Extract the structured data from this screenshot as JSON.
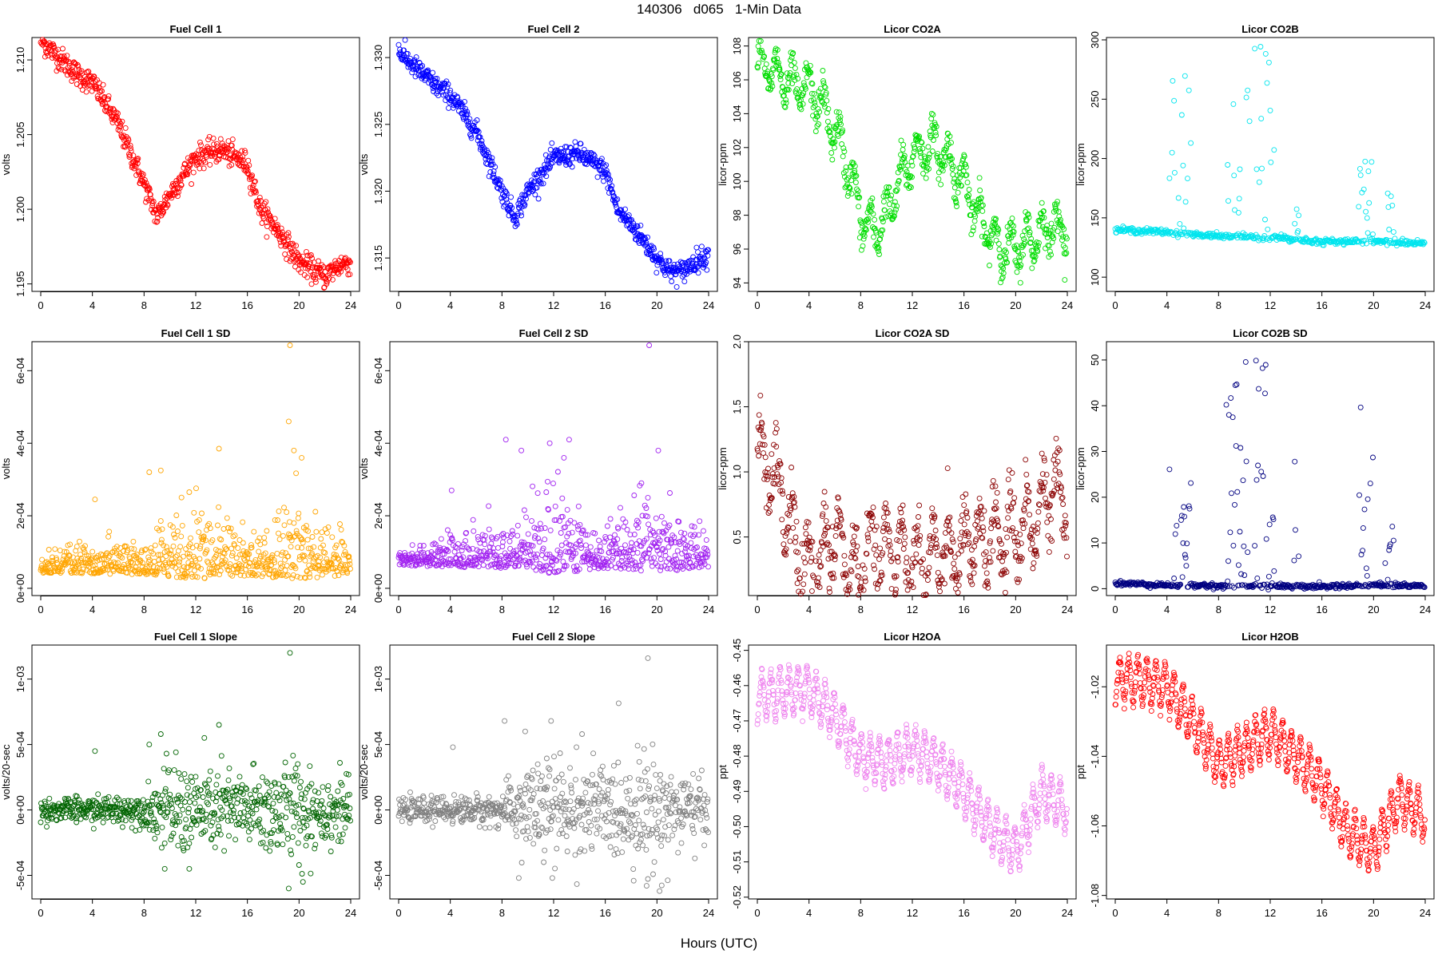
{
  "figure": {
    "title": "140306   d065   1-Min Data",
    "xlabel": "Hours (UTC)"
  },
  "chart_data": [
    {
      "type": "scatter",
      "title": "Fuel Cell 1",
      "xlabel": "",
      "ylabel": "volts",
      "color": "#ff0000",
      "xlim": [
        0,
        24
      ],
      "ylim": [
        1.1945,
        1.2115
      ],
      "xticks": [
        0,
        4,
        8,
        12,
        16,
        20,
        24
      ],
      "yticks": [
        1.195,
        1.2,
        1.205,
        1.21
      ],
      "yticklabels": [
        "1.195",
        "1.200",
        "1.205",
        "1.210"
      ],
      "series": [
        {
          "pattern": "trend",
          "noise": 0.0004,
          "x": [
            0,
            1,
            3,
            4,
            6,
            8,
            9,
            10,
            12,
            14,
            16,
            17,
            18,
            20,
            21,
            22,
            23,
            24
          ],
          "y": [
            1.2113,
            1.2105,
            1.2089,
            1.2085,
            1.2057,
            1.2017,
            1.1995,
            1.201,
            1.2035,
            1.204,
            1.203,
            1.2,
            1.199,
            1.1965,
            1.196,
            1.1955,
            1.1962,
            1.1965
          ]
        }
      ]
    },
    {
      "type": "scatter",
      "title": "Fuel Cell 2",
      "xlabel": "",
      "ylabel": "volts",
      "color": "#0000ff",
      "xlim": [
        0,
        24
      ],
      "ylim": [
        1.3125,
        1.3315
      ],
      "xticks": [
        0,
        4,
        8,
        12,
        16,
        20,
        24
      ],
      "yticks": [
        1.315,
        1.32,
        1.325,
        1.33
      ],
      "yticklabels": [
        "1.315",
        "1.320",
        "1.325",
        "1.330"
      ],
      "series": [
        {
          "pattern": "trend",
          "noise": 0.0004,
          "x": [
            0,
            1,
            3,
            4,
            6,
            8,
            9,
            10,
            12,
            14,
            16,
            17,
            18,
            20,
            21,
            22,
            23,
            24
          ],
          "y": [
            1.3305,
            1.3295,
            1.3278,
            1.3272,
            1.3245,
            1.32,
            1.318,
            1.32,
            1.3225,
            1.3228,
            1.3215,
            1.3185,
            1.3175,
            1.315,
            1.314,
            1.314,
            1.3148,
            1.3152
          ]
        }
      ]
    },
    {
      "type": "scatter",
      "title": "Licor CO2A",
      "xlabel": "",
      "ylabel": "licor-ppm",
      "color": "#00dd00",
      "xlim": [
        0,
        24
      ],
      "ylim": [
        93.5,
        108.5
      ],
      "xticks": [
        0,
        4,
        8,
        12,
        16,
        20,
        24
      ],
      "yticks": [
        94,
        96,
        98,
        100,
        102,
        104,
        106,
        108
      ],
      "yticklabels": [
        "94",
        "96",
        "98",
        "100",
        "102",
        "104",
        "106",
        "108"
      ],
      "series": [
        {
          "pattern": "oscillating",
          "noise": 0.5,
          "x": [
            0,
            1,
            2,
            3,
            4,
            5,
            6,
            7,
            8,
            9,
            10,
            11,
            12,
            13,
            14,
            15,
            16,
            17,
            18,
            19,
            20,
            21,
            22,
            23,
            24
          ],
          "y": [
            107.5,
            106.5,
            106,
            105.5,
            105.5,
            104.5,
            103,
            101,
            98,
            97,
            98,
            100,
            101.5,
            102,
            102,
            101,
            100,
            98,
            97,
            96,
            96,
            96.5,
            97,
            97.5,
            97
          ]
        }
      ]
    },
    {
      "type": "scatter",
      "title": "Licor CO2B",
      "xlabel": "",
      "ylabel": "licor-ppm",
      "color": "#00e5ee",
      "xlim": [
        0,
        24
      ],
      "ylim": [
        88,
        302
      ],
      "xticks": [
        0,
        4,
        8,
        12,
        16,
        20,
        24
      ],
      "yticks": [
        100,
        150,
        200,
        250,
        300
      ],
      "yticklabels": [
        "100",
        "150",
        "200",
        "250",
        "300"
      ],
      "series": [
        {
          "pattern": "baseline-bursts",
          "base": [
            [
              0,
              140
            ],
            [
              4,
              138
            ],
            [
              5,
              137
            ],
            [
              8,
              134
            ],
            [
              12,
              134
            ],
            [
              16,
              130
            ],
            [
              20,
              130
            ],
            [
              24,
              128
            ]
          ],
          "noise": 1.2,
          "bursts": [
            [
              4.2,
              5.9,
              130,
              270
            ],
            [
              8.6,
              10.4,
              130,
              260
            ],
            [
              10.8,
              12.3,
              130,
              300
            ],
            [
              13.8,
              14.2,
              130,
              165
            ],
            [
              18.8,
              20,
              130,
              220
            ],
            [
              20.9,
              21.7,
              130,
              175
            ]
          ]
        }
      ]
    },
    {
      "type": "scatter",
      "title": "Fuel Cell 1 SD",
      "xlabel": "",
      "ylabel": "volts",
      "color": "#ffa500",
      "xlim": [
        0,
        24
      ],
      "ylim": [
        -2e-05,
        0.00068
      ],
      "xticks": [
        0,
        4,
        8,
        12,
        16,
        20,
        24
      ],
      "yticks": [
        0,
        0.0002,
        0.0004,
        0.0006
      ],
      "yticklabels": [
        "0e+00",
        "2e-04",
        "4e-04",
        "6e-04"
      ],
      "series": [
        {
          "pattern": "noise-band",
          "base": 5e-05,
          "spread": [
            [
              0,
              3e-05
            ],
            [
              8,
              5e-05
            ],
            [
              12,
              0.0001
            ],
            [
              16,
              6e-05
            ],
            [
              20,
              0.0001
            ],
            [
              24,
              5e-05
            ]
          ],
          "outliers": [
            [
              4.2,
              0.000245
            ],
            [
              8.4,
              0.00032
            ],
            [
              9.3,
              0.000325
            ],
            [
              11.5,
              0.000265
            ],
            [
              13.8,
              0.000385
            ],
            [
              19.2,
              0.00046
            ],
            [
              19.3,
              0.00067
            ],
            [
              19.6,
              0.00038
            ],
            [
              20.2,
              0.00036
            ]
          ]
        }
      ]
    },
    {
      "type": "scatter",
      "title": "Fuel Cell 2 SD",
      "xlabel": "",
      "ylabel": "volts",
      "color": "#a020f0",
      "xlim": [
        0,
        24
      ],
      "ylim": [
        -2e-05,
        0.00068
      ],
      "xticks": [
        0,
        4,
        8,
        12,
        16,
        20,
        24
      ],
      "yticks": [
        0,
        0.0002,
        0.0004,
        0.0006
      ],
      "yticklabels": [
        "0e+00",
        "2e-04",
        "4e-04",
        "6e-04"
      ],
      "series": [
        {
          "pattern": "noise-band",
          "base": 7e-05,
          "spread": [
            [
              0,
              3e-05
            ],
            [
              8,
              6e-05
            ],
            [
              12,
              0.00012
            ],
            [
              16,
              6e-05
            ],
            [
              20,
              0.0001
            ],
            [
              24,
              5e-05
            ]
          ],
          "outliers": [
            [
              4.1,
              0.00027
            ],
            [
              8.3,
              0.00041
            ],
            [
              9.5,
              0.00038
            ],
            [
              11.7,
              0.0004
            ],
            [
              13.2,
              0.00041
            ],
            [
              12.8,
              0.00036
            ],
            [
              19.4,
              0.00067
            ],
            [
              20.1,
              0.00038
            ],
            [
              18.8,
              0.00029
            ]
          ]
        }
      ]
    },
    {
      "type": "scatter",
      "title": "Licor CO2A SD",
      "xlabel": "",
      "ylabel": "licor-ppm",
      "color": "#8b0000",
      "xlim": [
        0,
        24
      ],
      "ylim": [
        0.05,
        2.0
      ],
      "xticks": [
        0,
        4,
        8,
        12,
        16,
        20,
        24
      ],
      "yticks": [
        0.5,
        1.0,
        1.5,
        2.0
      ],
      "yticklabels": [
        "0.5",
        "1.0",
        "1.5",
        "2.0"
      ],
      "series": [
        {
          "pattern": "oscillating",
          "noise": 0.12,
          "x": [
            0,
            1,
            2,
            3,
            3.5,
            4,
            5,
            6,
            7,
            7.5,
            8,
            9,
            10,
            11,
            12,
            13,
            14,
            15,
            16,
            17,
            18,
            19,
            20,
            21,
            22,
            23,
            24
          ],
          "y": [
            1.15,
            1.0,
            0.8,
            0.4,
            0.2,
            0.25,
            0.35,
            0.5,
            0.3,
            0.2,
            0.25,
            0.4,
            0.35,
            0.4,
            0.3,
            0.3,
            0.35,
            0.35,
            0.4,
            0.45,
            0.5,
            0.5,
            0.55,
            0.6,
            0.7,
            0.9,
            0.8
          ]
        }
      ]
    },
    {
      "type": "scatter",
      "title": "Licor CO2B SD",
      "xlabel": "",
      "ylabel": "licor-ppm",
      "color": "#000080",
      "xlim": [
        0,
        24
      ],
      "ylim": [
        -1.5,
        54
      ],
      "xticks": [
        0,
        4,
        8,
        12,
        16,
        20,
        24
      ],
      "yticks": [
        0,
        10,
        20,
        30,
        40,
        50
      ],
      "yticklabels": [
        "0",
        "10",
        "20",
        "30",
        "40",
        "50"
      ],
      "series": [
        {
          "pattern": "baseline-bursts",
          "base": [
            [
              0,
              1.2
            ],
            [
              4,
              0.8
            ],
            [
              8,
              0.6
            ],
            [
              16,
              0.5
            ],
            [
              20,
              0.8
            ],
            [
              24,
              0.6
            ]
          ],
          "noise": 0.25,
          "bursts": [
            [
              4.2,
              5.9,
              0.5,
              29
            ],
            [
              8.6,
              10.4,
              0.5,
              53
            ],
            [
              10.8,
              12.3,
              0.5,
              52
            ],
            [
              13.8,
              14.2,
              0.5,
              29
            ],
            [
              18.8,
              20,
              0.5,
              48
            ],
            [
              20.9,
              21.7,
              0.5,
              15
            ]
          ]
        }
      ]
    },
    {
      "type": "scatter",
      "title": "Fuel Cell 1 Slope",
      "xlabel": "",
      "ylabel": "volts/20-sec",
      "color": "#006400",
      "xlim": [
        0,
        24
      ],
      "ylim": [
        -0.00068,
        0.00126
      ],
      "xticks": [
        0,
        4,
        8,
        12,
        16,
        20,
        24
      ],
      "yticks": [
        -0.0005,
        0,
        0.0005,
        0.001
      ],
      "yticklabels": [
        "-5e-04",
        "0e+00",
        "5e-04",
        "1e-03"
      ],
      "series": [
        {
          "pattern": "noise-band",
          "base": 0,
          "spread": [
            [
              0,
              4e-05
            ],
            [
              8,
              6e-05
            ],
            [
              10,
              0.00018
            ],
            [
              16,
              0.00015
            ],
            [
              20,
              0.0002
            ],
            [
              24,
              0.0001
            ]
          ],
          "outliers": [
            [
              4.2,
              0.00045
            ],
            [
              8.4,
              0.0005
            ],
            [
              9.3,
              0.00058
            ],
            [
              13.8,
              0.00065
            ],
            [
              19.3,
              0.0012
            ],
            [
              9.6,
              -0.00045
            ],
            [
              11.5,
              -0.00045
            ],
            [
              19.2,
              -0.0006
            ],
            [
              20.3,
              -0.00055
            ]
          ]
        }
      ]
    },
    {
      "type": "scatter",
      "title": "Fuel Cell 2 Slope",
      "xlabel": "",
      "ylabel": "volts/20-sec",
      "color": "#808080",
      "xlim": [
        0,
        24
      ],
      "ylim": [
        -0.00068,
        0.00126
      ],
      "xticks": [
        0,
        4,
        8,
        12,
        16,
        20,
        24
      ],
      "yticks": [
        -0.0005,
        0,
        0.0005,
        0.001
      ],
      "yticklabels": [
        "-5e-04",
        "0e+00",
        "5e-04",
        "1e-03"
      ],
      "series": [
        {
          "pattern": "noise-band",
          "base": 0,
          "spread": [
            [
              0,
              4e-05
            ],
            [
              8,
              6e-05
            ],
            [
              10,
              0.0002
            ],
            [
              16,
              0.00018
            ],
            [
              20,
              0.00022
            ],
            [
              24,
              0.0001
            ]
          ],
          "outliers": [
            [
              4.2,
              0.00048
            ],
            [
              8.2,
              0.00068
            ],
            [
              9.8,
              0.0006
            ],
            [
              11.8,
              0.00068
            ],
            [
              14.2,
              0.00058
            ],
            [
              19.3,
              0.00116
            ],
            [
              9.3,
              -0.00052
            ],
            [
              11.9,
              -0.00052
            ],
            [
              19.2,
              -0.00058
            ],
            [
              20.2,
              -0.00062
            ]
          ]
        }
      ]
    },
    {
      "type": "scatter",
      "title": "Licor H2OA",
      "xlabel": "",
      "ylabel": "ppt",
      "color": "#ee82ee",
      "xlim": [
        0,
        24
      ],
      "ylim": [
        -0.5205,
        -0.4485
      ],
      "xticks": [
        0,
        4,
        8,
        12,
        16,
        20,
        24
      ],
      "yticks": [
        -0.52,
        -0.51,
        -0.5,
        -0.49,
        -0.48,
        -0.47,
        -0.46,
        -0.45
      ],
      "yticklabels": [
        "-0.52",
        "-0.51",
        "-0.50",
        "-0.49",
        "-0.48",
        "-0.47",
        "-0.46",
        "-0.45"
      ],
      "series": [
        {
          "pattern": "sawtooth",
          "amp": 0.0075,
          "period": 0.7,
          "x": [
            0,
            2,
            4,
            6,
            8,
            10,
            12,
            14,
            16,
            18,
            20,
            22,
            24
          ],
          "y": [
            -0.463,
            -0.462,
            -0.461,
            -0.469,
            -0.48,
            -0.482,
            -0.478,
            -0.482,
            -0.49,
            -0.5,
            -0.507,
            -0.49,
            -0.495
          ]
        }
      ]
    },
    {
      "type": "scatter",
      "title": "Licor H2OB",
      "xlabel": "",
      "ylabel": "ppt",
      "color": "#ff0000",
      "xlim": [
        0,
        24
      ],
      "ylim": [
        -1.081,
        -1.008
      ],
      "xticks": [
        0,
        4,
        8,
        12,
        16,
        20,
        24
      ],
      "yticks": [
        -1.08,
        -1.06,
        -1.04,
        -1.02
      ],
      "yticklabels": [
        "-1.08",
        "-1.06",
        "-1.04",
        "-1.02"
      ],
      "series": [
        {
          "pattern": "sawtooth",
          "amp": 0.0075,
          "period": 0.7,
          "x": [
            0,
            2,
            4,
            6,
            8,
            10,
            12,
            14,
            16,
            18,
            20,
            22,
            24
          ],
          "y": [
            -1.018,
            -1.018,
            -1.02,
            -1.03,
            -1.042,
            -1.038,
            -1.033,
            -1.04,
            -1.048,
            -1.062,
            -1.067,
            -1.052,
            -1.058
          ]
        }
      ]
    }
  ]
}
